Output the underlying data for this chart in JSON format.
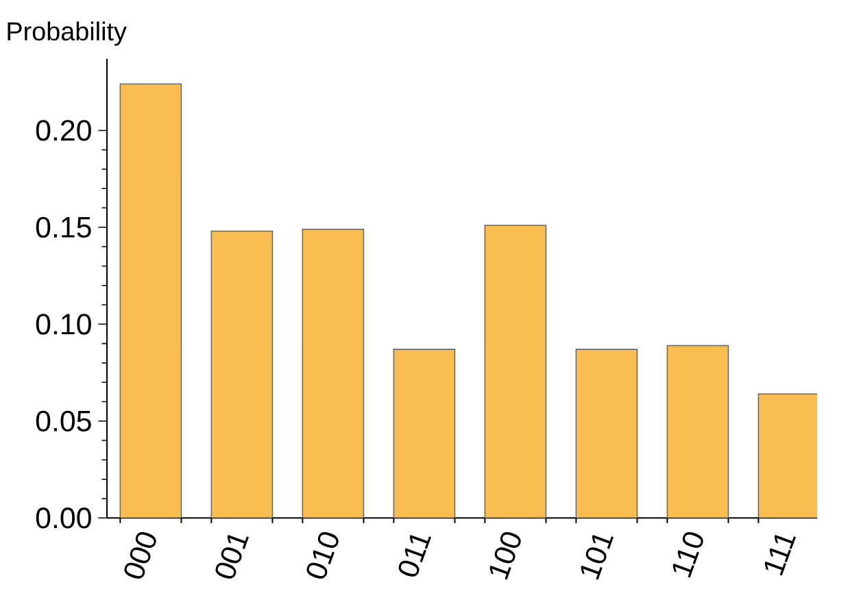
{
  "chart_data": {
    "type": "bar",
    "ylabel": "Probability",
    "categories": [
      "000",
      "001",
      "010",
      "011",
      "100",
      "101",
      "110",
      "111"
    ],
    "values": [
      0.224,
      0.148,
      0.149,
      0.087,
      0.151,
      0.087,
      0.089,
      0.064
    ],
    "color": "#f9bd51",
    "ylim": [
      0,
      0.237
    ],
    "yticks": [
      {
        "value": 0,
        "label": "0.00"
      },
      {
        "value": 0.05,
        "label": "0.05"
      },
      {
        "value": 0.1,
        "label": "0.10"
      },
      {
        "value": 0.15,
        "label": "0.15"
      },
      {
        "value": 0.2,
        "label": "0.20"
      }
    ]
  }
}
